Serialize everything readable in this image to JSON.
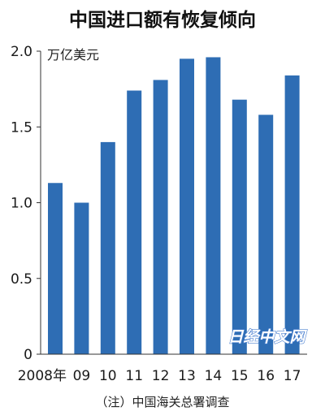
{
  "chart_data": {
    "type": "bar",
    "title": "中国进口额有恢复倾向",
    "unit_label": "万亿美元",
    "categories": [
      "2008年",
      "09",
      "10",
      "11",
      "12",
      "13",
      "14",
      "15",
      "16",
      "17"
    ],
    "values": [
      1.13,
      1.0,
      1.4,
      1.74,
      1.81,
      1.95,
      1.96,
      1.68,
      1.58,
      1.84
    ],
    "ylim": [
      0,
      2.0
    ],
    "yticks": [
      "0",
      "0.5",
      "1.0",
      "1.5",
      "2.0"
    ],
    "ytick_values": [
      0,
      0.5,
      1.0,
      1.5,
      2.0
    ],
    "grid": false,
    "bar_color": "#2e6db4",
    "note": "（注）中国海关总署调查"
  },
  "watermark": "日经中文网"
}
